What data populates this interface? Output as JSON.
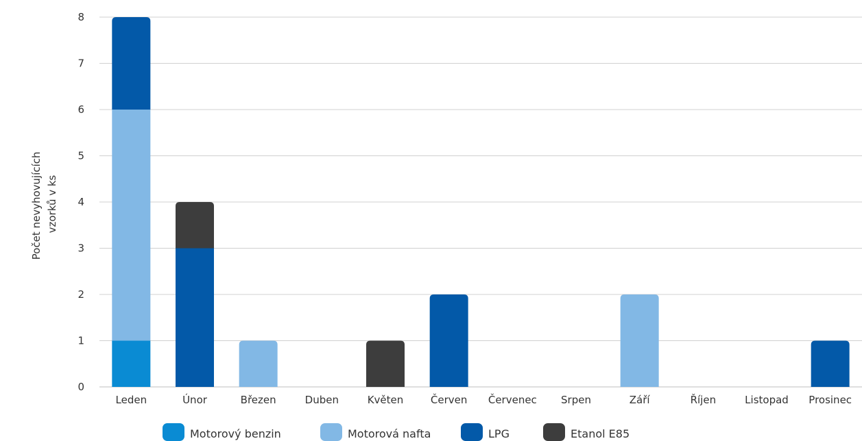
{
  "chart_data": {
    "type": "bar",
    "stacked": true,
    "title": "",
    "xlabel": "",
    "ylabel_lines": [
      "Počet nevyhovujících",
      "vzorků v ks"
    ],
    "ylim": [
      0,
      8
    ],
    "yticks": [
      0,
      1,
      2,
      3,
      4,
      5,
      6,
      7,
      8
    ],
    "grid": true,
    "legend_position": "bottom",
    "categories": [
      "Leden",
      "Únor",
      "Březen",
      "Duben",
      "Květen",
      "Červen",
      "Červenec",
      "Srpen",
      "Září",
      "Říjen",
      "Listopad",
      "Prosinec"
    ],
    "series": [
      {
        "name": "Motorový benzin",
        "color": "#0a8bd3",
        "values": [
          1,
          0,
          0,
          0,
          0,
          0,
          0,
          0,
          0,
          0,
          0,
          0
        ]
      },
      {
        "name": "Motorová nafta",
        "color": "#82b8e5",
        "values": [
          5,
          0,
          1,
          0,
          0,
          0,
          0,
          0,
          2,
          0,
          0,
          0
        ]
      },
      {
        "name": "LPG",
        "color": "#0359a8",
        "values": [
          2,
          3,
          0,
          0,
          0,
          2,
          0,
          0,
          0,
          0,
          0,
          1
        ]
      },
      {
        "name": "Etanol E85",
        "color": "#3d3d3d",
        "values": [
          0,
          1,
          0,
          0,
          1,
          0,
          0,
          0,
          0,
          0,
          0,
          0
        ]
      }
    ]
  }
}
